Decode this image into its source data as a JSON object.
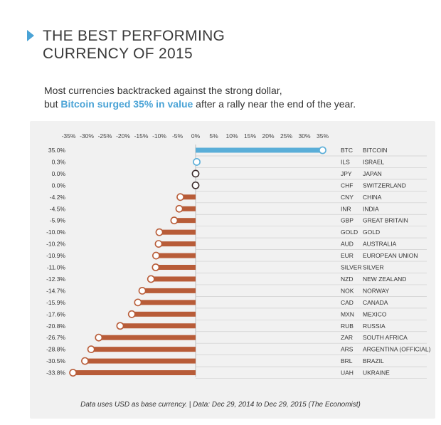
{
  "title_line1": "THE BEST PERFORMING",
  "title_line2": "CURRENCY OF 2015",
  "subtitle_line1": "Most currencies backtracked against the strong dollar,",
  "subtitle_line2_pre": "but ",
  "subtitle_line2_highlight": "Bitcoin surged 35% in value",
  "subtitle_line2_post": " after a rally near the end of the year.",
  "footnote": "Data uses USD as base currency. | Data: Dec 29, 2014 to Dec 29, 2015 (The Economist)",
  "colors": {
    "positive": "#5aaed8",
    "negative": "#b85c38",
    "zero": "#3a2a2a",
    "accent": "#4aa3d6"
  },
  "chart_data": {
    "type": "bar",
    "orientation": "horizontal",
    "xlim": [
      -35,
      35
    ],
    "x_ticks": [
      -35,
      -30,
      -25,
      -20,
      -15,
      -10,
      -5,
      0,
      5,
      10,
      15,
      20,
      25,
      30,
      35
    ],
    "x_tick_labels": [
      "-35%",
      "-30%",
      "-25%",
      "-20%",
      "-15%",
      "-10%",
      "-5%",
      "0%",
      "5%",
      "10%",
      "15%",
      "20%",
      "25%",
      "30%",
      "35%"
    ],
    "rows": [
      {
        "value": 35.0,
        "label": "35.0%",
        "code": "BTC",
        "name": "BITCOIN"
      },
      {
        "value": 0.3,
        "label": "0.3%",
        "code": "ILS",
        "name": "ISRAEL"
      },
      {
        "value": 0.0,
        "label": "0.0%",
        "code": "JPY",
        "name": "JAPAN"
      },
      {
        "value": 0.0,
        "label": "0.0%",
        "code": "CHF",
        "name": "SWITZERLAND"
      },
      {
        "value": -4.2,
        "label": "-4.2%",
        "code": "CNY",
        "name": "CHINA"
      },
      {
        "value": -4.5,
        "label": "-4.5%",
        "code": "INR",
        "name": "INDIA"
      },
      {
        "value": -5.9,
        "label": "-5.9%",
        "code": "GBP",
        "name": "GREAT BRITAIN"
      },
      {
        "value": -10.0,
        "label": "-10.0%",
        "code": "GOLD",
        "name": "GOLD"
      },
      {
        "value": -10.2,
        "label": "-10.2%",
        "code": "AUD",
        "name": "AUSTRALIA"
      },
      {
        "value": -10.9,
        "label": "-10.9%",
        "code": "EUR",
        "name": "EUROPEAN UNION"
      },
      {
        "value": -11.0,
        "label": "-11.0%",
        "code": "SILVER",
        "name": "SILVER"
      },
      {
        "value": -12.3,
        "label": "-12.3%",
        "code": "NZD",
        "name": "NEW ZEALAND"
      },
      {
        "value": -14.7,
        "label": "-14.7%",
        "code": "NOK",
        "name": "NORWAY"
      },
      {
        "value": -15.9,
        "label": "-15.9%",
        "code": "CAD",
        "name": "CANADA"
      },
      {
        "value": -17.6,
        "label": "-17.6%",
        "code": "MXN",
        "name": "MEXICO"
      },
      {
        "value": -20.8,
        "label": "-20.8%",
        "code": "RUB",
        "name": "RUSSIA"
      },
      {
        "value": -26.7,
        "label": "-26.7%",
        "code": "ZAR",
        "name": "SOUTH AFRICA"
      },
      {
        "value": -28.8,
        "label": "-28.8%",
        "code": "ARS",
        "name": "ARGENTINA (OFFICIAL)"
      },
      {
        "value": -30.5,
        "label": "-30.5%",
        "code": "BRL",
        "name": "BRAZIL"
      },
      {
        "value": -33.8,
        "label": "-33.8%",
        "code": "UAH",
        "name": "UKRAINE"
      }
    ]
  }
}
